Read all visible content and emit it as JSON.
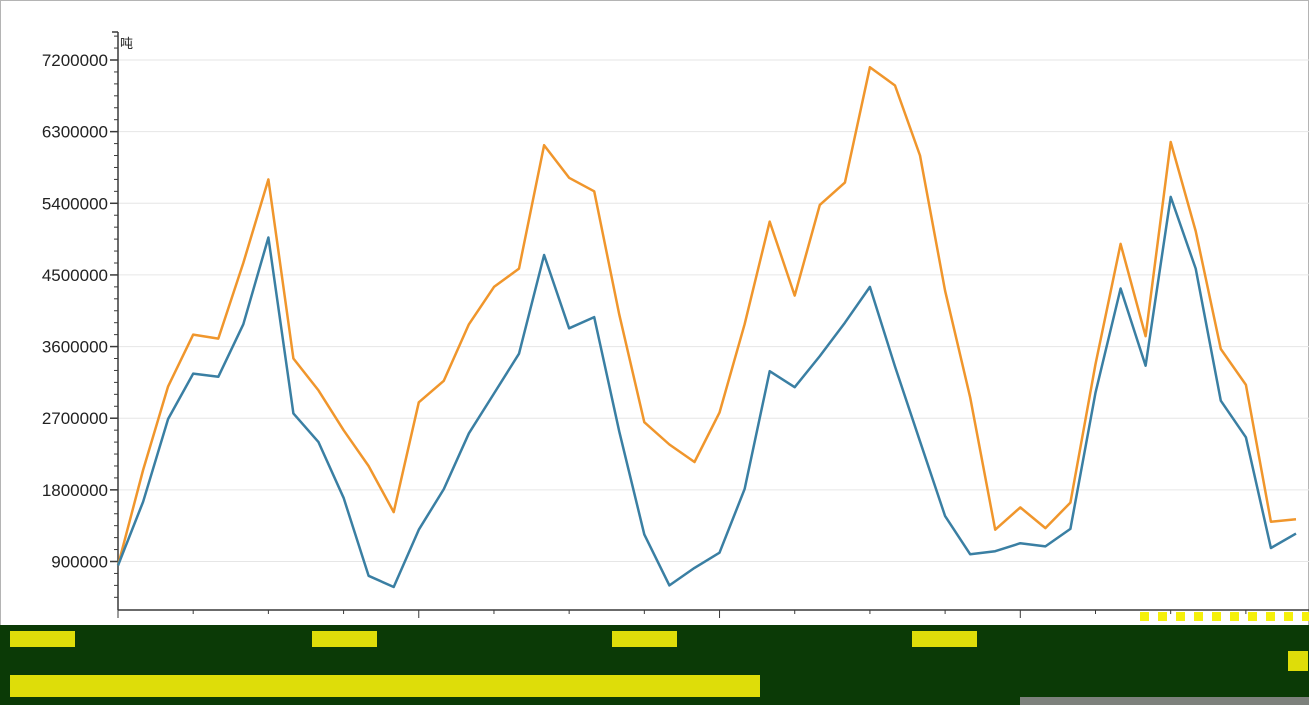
{
  "chart_data": {
    "type": "line",
    "ylabel": "吨",
    "ylim": [
      450000,
      7500000
    ],
    "yticks": [
      900000,
      1800000,
      2700000,
      3600000,
      4500000,
      5400000,
      6300000,
      7200000
    ],
    "ytick_labels": [
      "900000",
      "1800000",
      "2700000",
      "3600000",
      "4500000",
      "5400000",
      "6300000",
      "7200000"
    ],
    "x": [
      1,
      2,
      3,
      4,
      5,
      6,
      7,
      8,
      9,
      10,
      11,
      12,
      13,
      14,
      15,
      16,
      17,
      18,
      19,
      20,
      21,
      22,
      23,
      24,
      25,
      26,
      27,
      28,
      29,
      30,
      31,
      32,
      33,
      34,
      35,
      36,
      37,
      38,
      39,
      40,
      41,
      42,
      43,
      44,
      45,
      46,
      47,
      48
    ],
    "grid": true,
    "series": [
      {
        "color": "#f0962c",
        "values": [
          850000,
          2050000,
          3100000,
          3750000,
          3700000,
          4650000,
          5700000,
          3450000,
          3050000,
          2550000,
          2100000,
          1520000,
          2900000,
          3170000,
          3880000,
          4350000,
          4580000,
          6130000,
          5720000,
          5550000,
          4000000,
          2650000,
          2370000,
          2150000,
          2770000,
          3880000,
          5170000,
          4240000,
          5380000,
          5660000,
          7110000,
          6880000,
          6000000,
          4300000,
          2960000,
          1300000,
          1580000,
          1320000,
          1640000,
          3380000,
          4890000,
          3730000,
          6170000,
          5050000,
          3570000,
          3120000,
          1400000,
          1430000
        ]
      },
      {
        "color": "#3a7fa3",
        "values": [
          850000,
          1650000,
          2690000,
          3260000,
          3220000,
          3880000,
          4970000,
          2760000,
          2400000,
          1700000,
          720000,
          580000,
          1300000,
          1810000,
          2510000,
          3010000,
          3510000,
          4750000,
          3830000,
          3970000,
          2530000,
          1240000,
          600000,
          820000,
          1010000,
          1810000,
          3290000,
          3090000,
          3480000,
          3900000,
          4350000,
          3350000,
          2410000,
          1470000,
          990000,
          1030000,
          1130000,
          1090000,
          1310000,
          3020000,
          4330000,
          3360000,
          5480000,
          4580000,
          2920000,
          2460000,
          1070000,
          1250000
        ]
      }
    ]
  },
  "colors": {
    "grid": "#e6e6e6",
    "axis": "#3a3a3a",
    "band": "#0b3a06",
    "glitch_yellow": "#f5f00a",
    "glitch_gray": "#8a8a8a"
  }
}
